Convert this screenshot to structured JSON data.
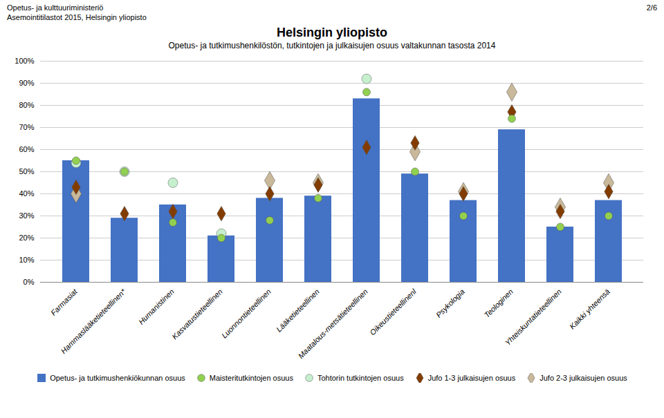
{
  "chart_data": {
    "type": "bar",
    "title": "Helsingin yliopisto",
    "subtitle": "Opetus- ja tutkimushenkilöstön, tutkintojen ja julkaisujen osuus valtakunnan tasosta 2014",
    "annotations": [
      "Opetus- ja kulttuuriministeriö",
      "Asemointitilastot 2015, Helsingin yliopisto",
      "2/6"
    ],
    "categories": [
      "Farmasiat",
      "Hammaslääketieteellinen*",
      "Humanistinen",
      "Kasvatustieteellinen",
      "Luonnontieteellinen",
      "Lääketieteellinen",
      "Maatalous-metsätieteellinen",
      "Oikeustieteellinenl",
      "Psykologia",
      "Teologinen",
      "Yhteiskuntatieteellinen",
      "Kaikki yhteensä"
    ],
    "series": [
      {
        "name": "Opetus- ja tutkimushenkiökunnan osuus",
        "type": "bar",
        "color": "#4472C4",
        "values": [
          0.55,
          0.29,
          0.35,
          0.21,
          0.38,
          0.39,
          0.83,
          0.49,
          0.37,
          0.69,
          0.25,
          0.37
        ]
      },
      {
        "name": "Maisteritutkintojen osuus",
        "type": "scatter",
        "marker": "circle",
        "color": "#92D050",
        "values": [
          0.55,
          0.5,
          0.27,
          0.2,
          0.28,
          0.38,
          0.86,
          0.5,
          0.3,
          0.74,
          0.25,
          0.3
        ]
      },
      {
        "name": "Tohtorin tutkintojen osuus",
        "type": "scatter",
        "marker": "circle",
        "color": "#C6EFCE",
        "values": [
          0.54,
          0.5,
          0.45,
          0.22,
          null,
          null,
          0.92,
          null,
          null,
          null,
          null,
          null
        ]
      },
      {
        "name": "Jufo 1-3 julkaisujen osuus",
        "type": "scatter",
        "marker": "diamond",
        "color": "#833C00",
        "values": [
          0.43,
          0.31,
          0.32,
          0.31,
          0.4,
          0.44,
          0.61,
          0.63,
          0.4,
          0.77,
          0.32,
          0.41
        ]
      },
      {
        "name": "Jufo 2-3 julkaisujen osuus",
        "type": "scatter",
        "marker": "diamond",
        "color": "#C9B99A",
        "values": [
          0.4,
          null,
          null,
          null,
          0.46,
          0.45,
          null,
          0.59,
          0.41,
          0.86,
          0.34,
          0.45
        ]
      }
    ],
    "ylim": [
      0,
      1.0
    ],
    "yticks": [
      {
        "value": 0,
        "label": "0%"
      },
      {
        "value": 0.1,
        "label": "10%"
      },
      {
        "value": 0.2,
        "label": "20%"
      },
      {
        "value": 0.3,
        "label": "30%"
      },
      {
        "value": 0.4,
        "label": "40%"
      },
      {
        "value": 0.5,
        "label": "50%"
      },
      {
        "value": 0.6,
        "label": "60%"
      },
      {
        "value": 0.7,
        "label": "70%"
      },
      {
        "value": 0.8,
        "label": "80%"
      },
      {
        "value": 0.9,
        "label": "90%"
      },
      {
        "value": 1.0,
        "label": "100%"
      }
    ],
    "grid": true,
    "legend": "bottom"
  }
}
